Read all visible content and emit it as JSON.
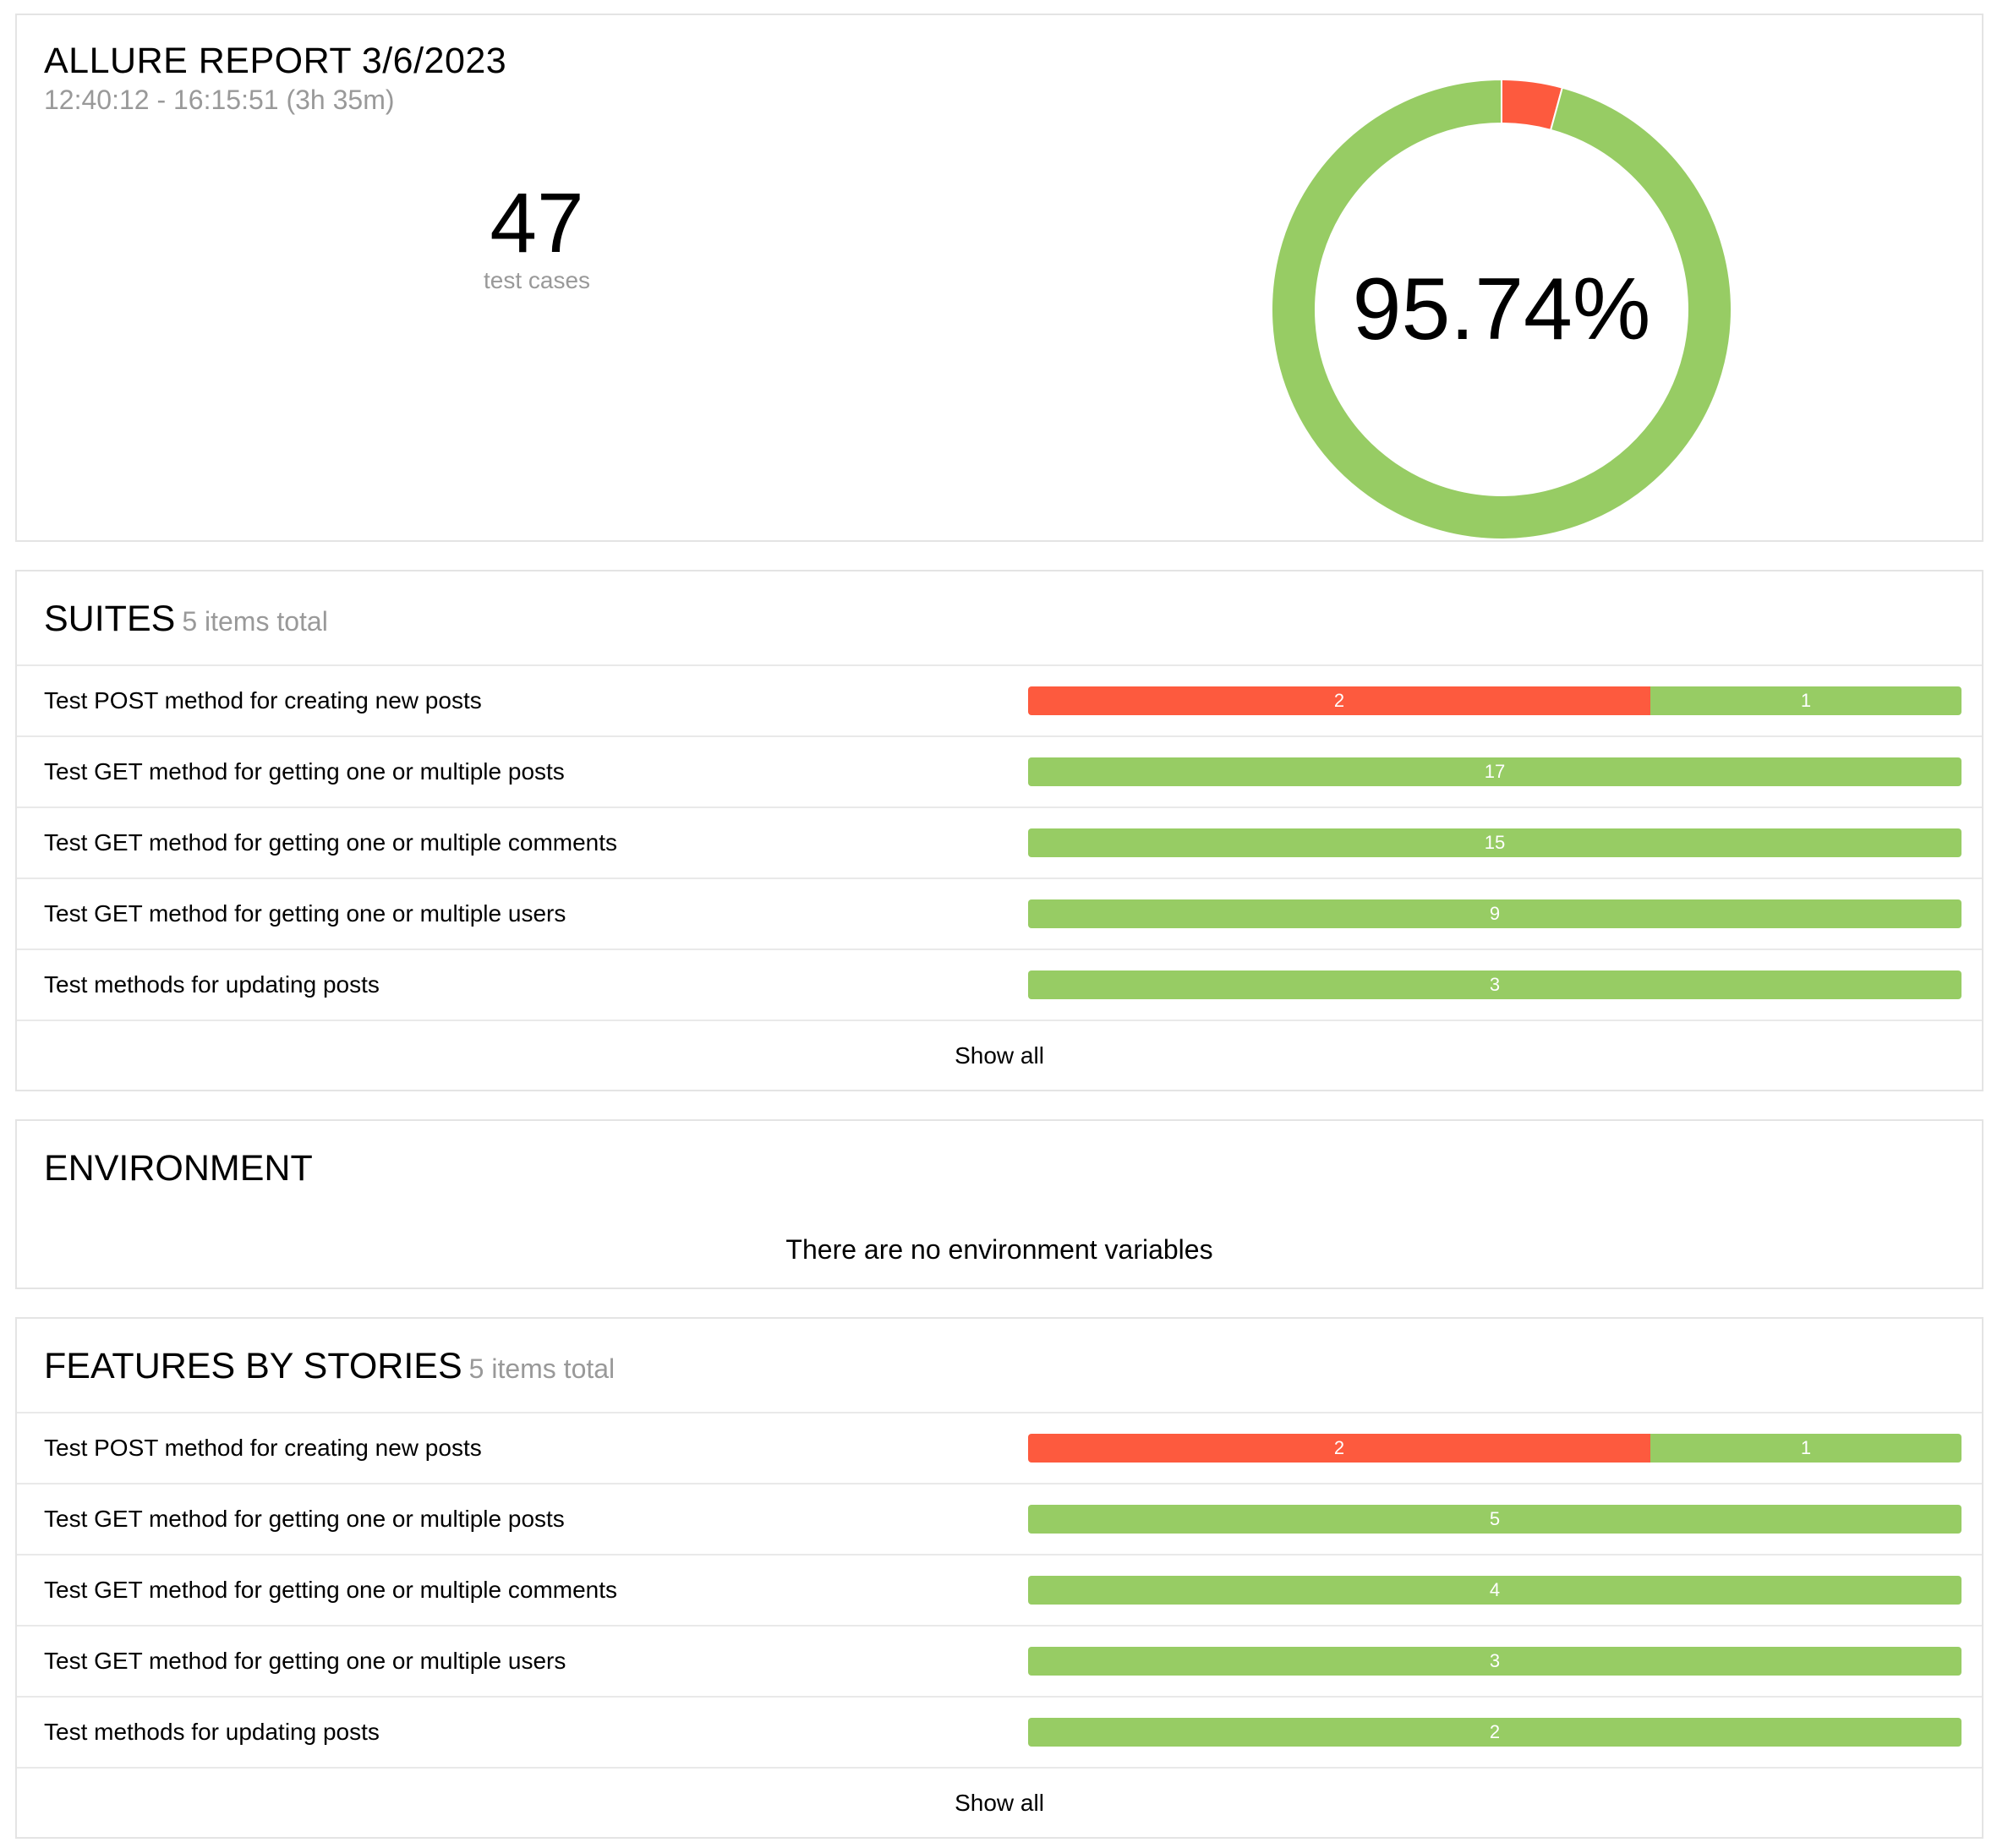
{
  "summary": {
    "title": "ALLURE REPORT 3/6/2023",
    "time_range": "12:40:12 - 16:15:51 (3h 35m)",
    "count": "47",
    "count_label": "test cases",
    "success_rate": "95.74%",
    "chart_data": {
      "type": "pie",
      "categories": [
        "failed",
        "passed"
      ],
      "values": [
        2,
        45
      ],
      "colors": [
        "#fd5a3e",
        "#97cc64"
      ]
    }
  },
  "suites": {
    "title": "SUITES",
    "subtitle": "5 items total",
    "show_all": "Show all",
    "rows": [
      {
        "name": "Test POST method for creating new posts",
        "segments": [
          {
            "status": "failed",
            "value": 2,
            "label": "2"
          },
          {
            "status": "passed",
            "value": 1,
            "label": "1"
          }
        ]
      },
      {
        "name": "Test GET method for getting one or multiple posts",
        "segments": [
          {
            "status": "passed",
            "value": 17,
            "label": "17"
          }
        ]
      },
      {
        "name": "Test GET method for getting one or multiple comments",
        "segments": [
          {
            "status": "passed",
            "value": 15,
            "label": "15"
          }
        ]
      },
      {
        "name": "Test GET method for getting one or multiple users",
        "segments": [
          {
            "status": "passed",
            "value": 9,
            "label": "9"
          }
        ]
      },
      {
        "name": "Test methods for updating posts",
        "segments": [
          {
            "status": "passed",
            "value": 3,
            "label": "3"
          }
        ]
      }
    ]
  },
  "environment": {
    "title": "ENVIRONMENT",
    "message": "There are no environment variables"
  },
  "features": {
    "title": "FEATURES BY STORIES",
    "subtitle": "5 items total",
    "show_all": "Show all",
    "rows": [
      {
        "name": "Test POST method for creating new posts",
        "segments": [
          {
            "status": "failed",
            "value": 2,
            "label": "2"
          },
          {
            "status": "passed",
            "value": 1,
            "label": "1"
          }
        ]
      },
      {
        "name": "Test GET method for getting one or multiple posts",
        "segments": [
          {
            "status": "passed",
            "value": 5,
            "label": "5"
          }
        ]
      },
      {
        "name": "Test GET method for getting one or multiple comments",
        "segments": [
          {
            "status": "passed",
            "value": 4,
            "label": "4"
          }
        ]
      },
      {
        "name": "Test GET method for getting one or multiple users",
        "segments": [
          {
            "status": "passed",
            "value": 3,
            "label": "3"
          }
        ]
      },
      {
        "name": "Test methods for updating posts",
        "segments": [
          {
            "status": "passed",
            "value": 2,
            "label": "2"
          }
        ]
      }
    ]
  }
}
